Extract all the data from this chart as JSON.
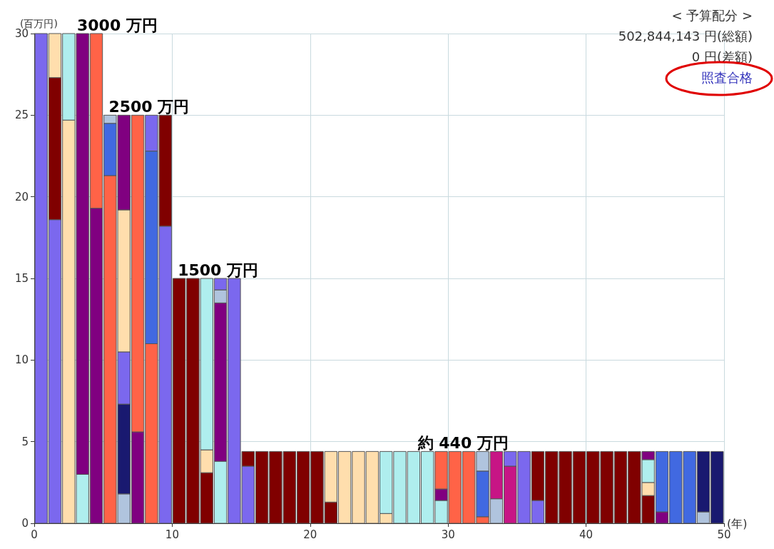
{
  "chart_data": {
    "type": "bar",
    "stacked": true,
    "grid": true,
    "xlabel": "(年)",
    "ylabel": "(百万円)",
    "xlim": [
      0,
      50
    ],
    "xticks": [
      0,
      10,
      20,
      30,
      40,
      50
    ],
    "ylim": [
      0,
      30
    ],
    "yticks": [
      0,
      5,
      10,
      15,
      20,
      25,
      30
    ],
    "x": [
      0.5,
      1.5,
      2.5,
      3.5,
      4.5,
      5.5,
      6.5,
      7.5,
      8.5,
      9.5,
      10.5,
      11.5,
      12.5,
      13.5,
      14.5,
      15.5,
      16.5,
      17.5,
      18.5,
      19.5,
      20.5,
      21.5,
      22.5,
      23.5,
      24.5,
      25.5,
      26.5,
      27.5,
      28.5,
      29.5,
      30.5,
      31.5,
      32.5,
      33.5,
      34.5,
      35.5,
      36.5,
      37.5,
      38.5,
      39.5,
      40.5,
      41.5,
      42.5,
      43.5,
      44.5,
      45.5,
      46.5,
      47.5,
      48.5,
      49.5
    ],
    "series": [
      {
        "values": [
          30,
          18.6,
          24.7,
          3.0,
          19.3,
          21.3,
          1.8,
          5.6,
          11.0,
          18.2,
          15,
          15,
          3.1,
          3.8,
          15,
          3.5,
          4.4,
          4.4,
          4.4,
          4.4,
          4.4,
          1.3,
          4.4,
          4.4,
          4.4,
          0.6,
          4.4,
          4.4,
          4.4,
          1.4,
          4.4,
          4.4,
          0.4,
          1.5,
          3.5,
          4.4,
          1.4,
          4.4,
          4.4,
          4.4,
          4.4,
          4.4,
          4.4,
          4.4,
          1.7,
          0.7,
          4.4,
          4.4,
          0.7,
          4.4
        ],
        "colors": [
          "#7b68ee",
          "#7b68ee",
          "#ffdead",
          "#afeeee",
          "#800080",
          "#ff6347",
          "#b0c4de",
          "#800080",
          "#ff6347",
          "#7b68ee",
          "#800000",
          "#800000",
          "#800000",
          "#afeeee",
          "#7b68ee",
          "#7b68ee",
          "#800000",
          "#800000",
          "#800000",
          "#800000",
          "#800000",
          "#800000",
          "#ffdead",
          "#ffdead",
          "#ffdead",
          "#ffdead",
          "#afeeee",
          "#afeeee",
          "#afeeee",
          "#afeeee",
          "#ff6347",
          "#ff6347",
          "#ff6347",
          "#b0c4de",
          "#c71585",
          "#7b68ee",
          "#7b68ee",
          "#800000",
          "#800000",
          "#800000",
          "#800000",
          "#800000",
          "#800000",
          "#800000",
          "#800000",
          "#800080",
          "#4169e1",
          "#4169e1",
          "#b0c4de",
          "#191970"
        ]
      },
      {
        "values": [
          null,
          8.7,
          5.3,
          27.0,
          10.7,
          3.2,
          5.5,
          19.4,
          11.8,
          6.8,
          null,
          null,
          1.4,
          9.7,
          null,
          0.9,
          null,
          null,
          null,
          null,
          null,
          3.1,
          null,
          null,
          null,
          3.8,
          null,
          null,
          null,
          0.7,
          null,
          null,
          2.8,
          2.9,
          0.9,
          null,
          3.0,
          null,
          null,
          null,
          null,
          null,
          null,
          null,
          0.8,
          3.7,
          null,
          null,
          3.7,
          null
        ],
        "colors": [
          null,
          "#800000",
          "#afeeee",
          "#800080",
          "#ff6347",
          "#4169e1",
          "#191970",
          "#ff6347",
          "#4169e1",
          "#800000",
          null,
          null,
          "#ffdead",
          "#800080",
          null,
          "#800000",
          null,
          null,
          null,
          null,
          null,
          "#ffdead",
          null,
          null,
          null,
          "#afeeee",
          null,
          null,
          null,
          "#800080",
          null,
          null,
          "#4169e1",
          "#c71585",
          "#7b68ee",
          null,
          "#800000",
          null,
          null,
          null,
          null,
          null,
          null,
          null,
          "#ffdead",
          "#4169e1",
          null,
          null,
          "#191970",
          null
        ]
      },
      {
        "values": [
          null,
          2.7,
          null,
          null,
          null,
          0.5,
          3.2,
          null,
          2.2,
          null,
          null,
          null,
          10.5,
          0.8,
          null,
          null,
          null,
          null,
          null,
          null,
          null,
          null,
          null,
          null,
          null,
          null,
          null,
          null,
          null,
          2.3,
          null,
          null,
          1.2,
          null,
          null,
          null,
          null,
          null,
          null,
          null,
          null,
          null,
          null,
          null,
          1.4,
          null,
          null,
          null,
          null,
          null
        ],
        "colors": [
          null,
          "#ffdead",
          null,
          null,
          null,
          "#b0c4de",
          "#7b68ee",
          null,
          "#7b68ee",
          null,
          null,
          null,
          "#afeeee",
          "#b0c4de",
          null,
          null,
          null,
          null,
          null,
          null,
          null,
          null,
          null,
          null,
          null,
          null,
          null,
          null,
          null,
          "#ff6347",
          null,
          null,
          "#b0c4de",
          null,
          null,
          null,
          null,
          null,
          null,
          null,
          null,
          null,
          null,
          null,
          "#afeeee",
          null,
          null,
          null,
          null,
          null
        ]
      },
      {
        "values": [
          null,
          null,
          null,
          null,
          null,
          null,
          8.7,
          null,
          null,
          null,
          null,
          null,
          null,
          0.7,
          null,
          null,
          null,
          null,
          null,
          null,
          null,
          null,
          null,
          null,
          null,
          null,
          null,
          null,
          null,
          null,
          null,
          null,
          null,
          null,
          null,
          null,
          null,
          null,
          null,
          null,
          null,
          null,
          null,
          null,
          0.5,
          null,
          null,
          null,
          null,
          null
        ],
        "colors": [
          null,
          null,
          null,
          null,
          null,
          null,
          "#ffdead",
          null,
          null,
          null,
          null,
          null,
          null,
          "#7b68ee",
          null,
          null,
          null,
          null,
          null,
          null,
          null,
          null,
          null,
          null,
          null,
          null,
          null,
          null,
          null,
          null,
          null,
          null,
          null,
          null,
          null,
          null,
          null,
          null,
          null,
          null,
          null,
          null,
          null,
          null,
          "#800080",
          null,
          null,
          null,
          null,
          null
        ]
      },
      {
        "values": [
          null,
          null,
          null,
          null,
          null,
          null,
          5.8,
          null,
          null,
          null,
          null,
          null,
          null,
          null,
          null,
          null,
          null,
          null,
          null,
          null,
          null,
          null,
          null,
          null,
          null,
          null,
          null,
          null,
          null,
          null,
          null,
          null,
          null,
          null,
          null,
          null,
          null,
          null,
          null,
          null,
          null,
          null,
          null,
          null,
          null,
          null,
          null,
          null,
          null,
          null
        ],
        "colors": [
          null,
          null,
          null,
          null,
          null,
          null,
          "#800080",
          null,
          null,
          null,
          null,
          null,
          null,
          null,
          null,
          null,
          null,
          null,
          null,
          null,
          null,
          null,
          null,
          null,
          null,
          null,
          null,
          null,
          null,
          null,
          null,
          null,
          null,
          null,
          null,
          null,
          null,
          null,
          null,
          null,
          null,
          null,
          null,
          null,
          null,
          null,
          null,
          null,
          null,
          null
        ]
      }
    ],
    "annotations": [
      "3000 万円",
      "2500 万円",
      "1500 万円",
      "約 440 万円",
      "< 予算配分 >",
      "502,844,143 円(総額)",
      "0 円(差額)",
      "照査合格"
    ]
  }
}
